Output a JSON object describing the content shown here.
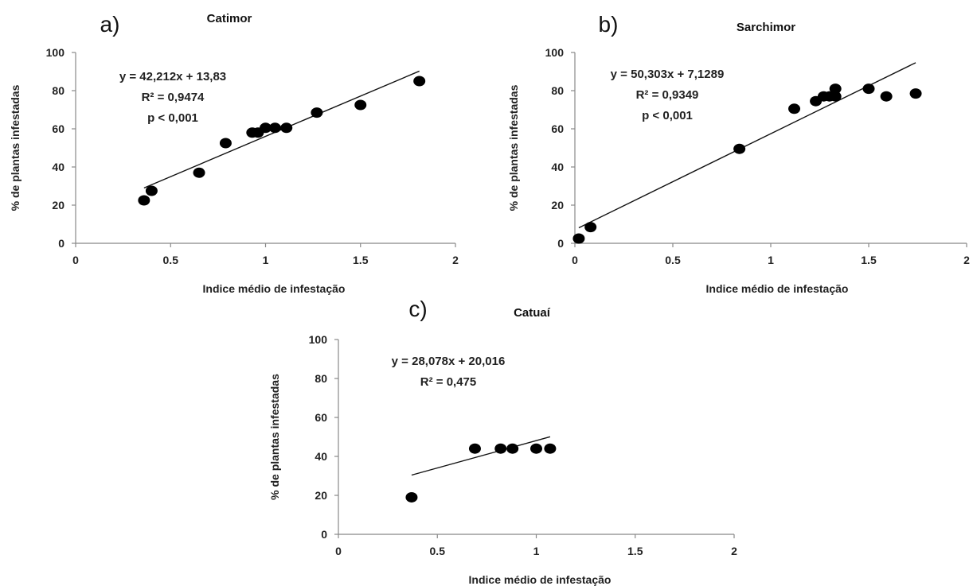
{
  "chart_data": [
    {
      "type": "scatter",
      "panel": "a)",
      "title": "Catimor",
      "xlabel": "Indice médio de infestação",
      "ylabel": "% de plantas infestadas",
      "xlim": [
        0,
        2
      ],
      "ylim": [
        0,
        100
      ],
      "xticks": [
        "0",
        "0.5",
        "1",
        "1.5",
        "2"
      ],
      "yticks": [
        "0",
        "20",
        "40",
        "60",
        "80",
        "100"
      ],
      "x": [
        0.36,
        0.4,
        0.65,
        0.79,
        0.93,
        0.96,
        1.0,
        1.05,
        1.11,
        1.27,
        1.5,
        1.81
      ],
      "y": [
        22.5,
        27.5,
        37,
        52.5,
        58,
        58,
        60.5,
        60.5,
        60.5,
        68.5,
        72.5,
        85
      ],
      "trendline": {
        "slope": 42.212,
        "intercept": 13.83,
        "x_range": [
          0.36,
          1.81
        ]
      },
      "annotations": [
        "y = 42,212x + 13,83",
        "R² = 0,9474",
        "p < 0,001"
      ]
    },
    {
      "type": "scatter",
      "panel": "b)",
      "title": "Sarchimor",
      "xlabel": "Indice médio de infestação",
      "ylabel": "% de plantas infestadas",
      "xlim": [
        0,
        2
      ],
      "ylim": [
        0,
        100
      ],
      "xticks": [
        "0",
        "0.5",
        "1",
        "1.5",
        "2"
      ],
      "yticks": [
        "0",
        "20",
        "40",
        "60",
        "80",
        "100"
      ],
      "x": [
        0.02,
        0.08,
        0.84,
        1.12,
        1.23,
        1.27,
        1.3,
        1.33,
        1.33,
        1.5,
        1.59,
        1.74
      ],
      "y": [
        2.5,
        8.5,
        49.5,
        70.5,
        74.5,
        77,
        77,
        77,
        81,
        81,
        77,
        78.5
      ],
      "trendline": {
        "slope": 50.303,
        "intercept": 7.1289,
        "x_range": [
          0.02,
          1.74
        ]
      },
      "annotations": [
        "y = 50,303x + 7,1289",
        "R² = 0,9349",
        "p < 0,001"
      ]
    },
    {
      "type": "scatter",
      "panel": "c)",
      "title": "Catuaí",
      "xlabel": "Indice médio de infestação",
      "ylabel": "% de plantas infestadas",
      "xlim": [
        0,
        2
      ],
      "ylim": [
        0,
        100
      ],
      "xticks": [
        "0",
        "0.5",
        "1",
        "1.5",
        "2"
      ],
      "yticks": [
        "0",
        "20",
        "40",
        "60",
        "80",
        "100"
      ],
      "x": [
        0.37,
        0.69,
        0.82,
        0.88,
        1.0,
        1.07
      ],
      "y": [
        19,
        44,
        44,
        44,
        44,
        44
      ],
      "trendline": {
        "slope": 28.078,
        "intercept": 20.016,
        "x_range": [
          0.37,
          1.07
        ]
      },
      "annotations": [
        "y = 28,078x + 20,016",
        "R² = 0,475"
      ]
    }
  ]
}
